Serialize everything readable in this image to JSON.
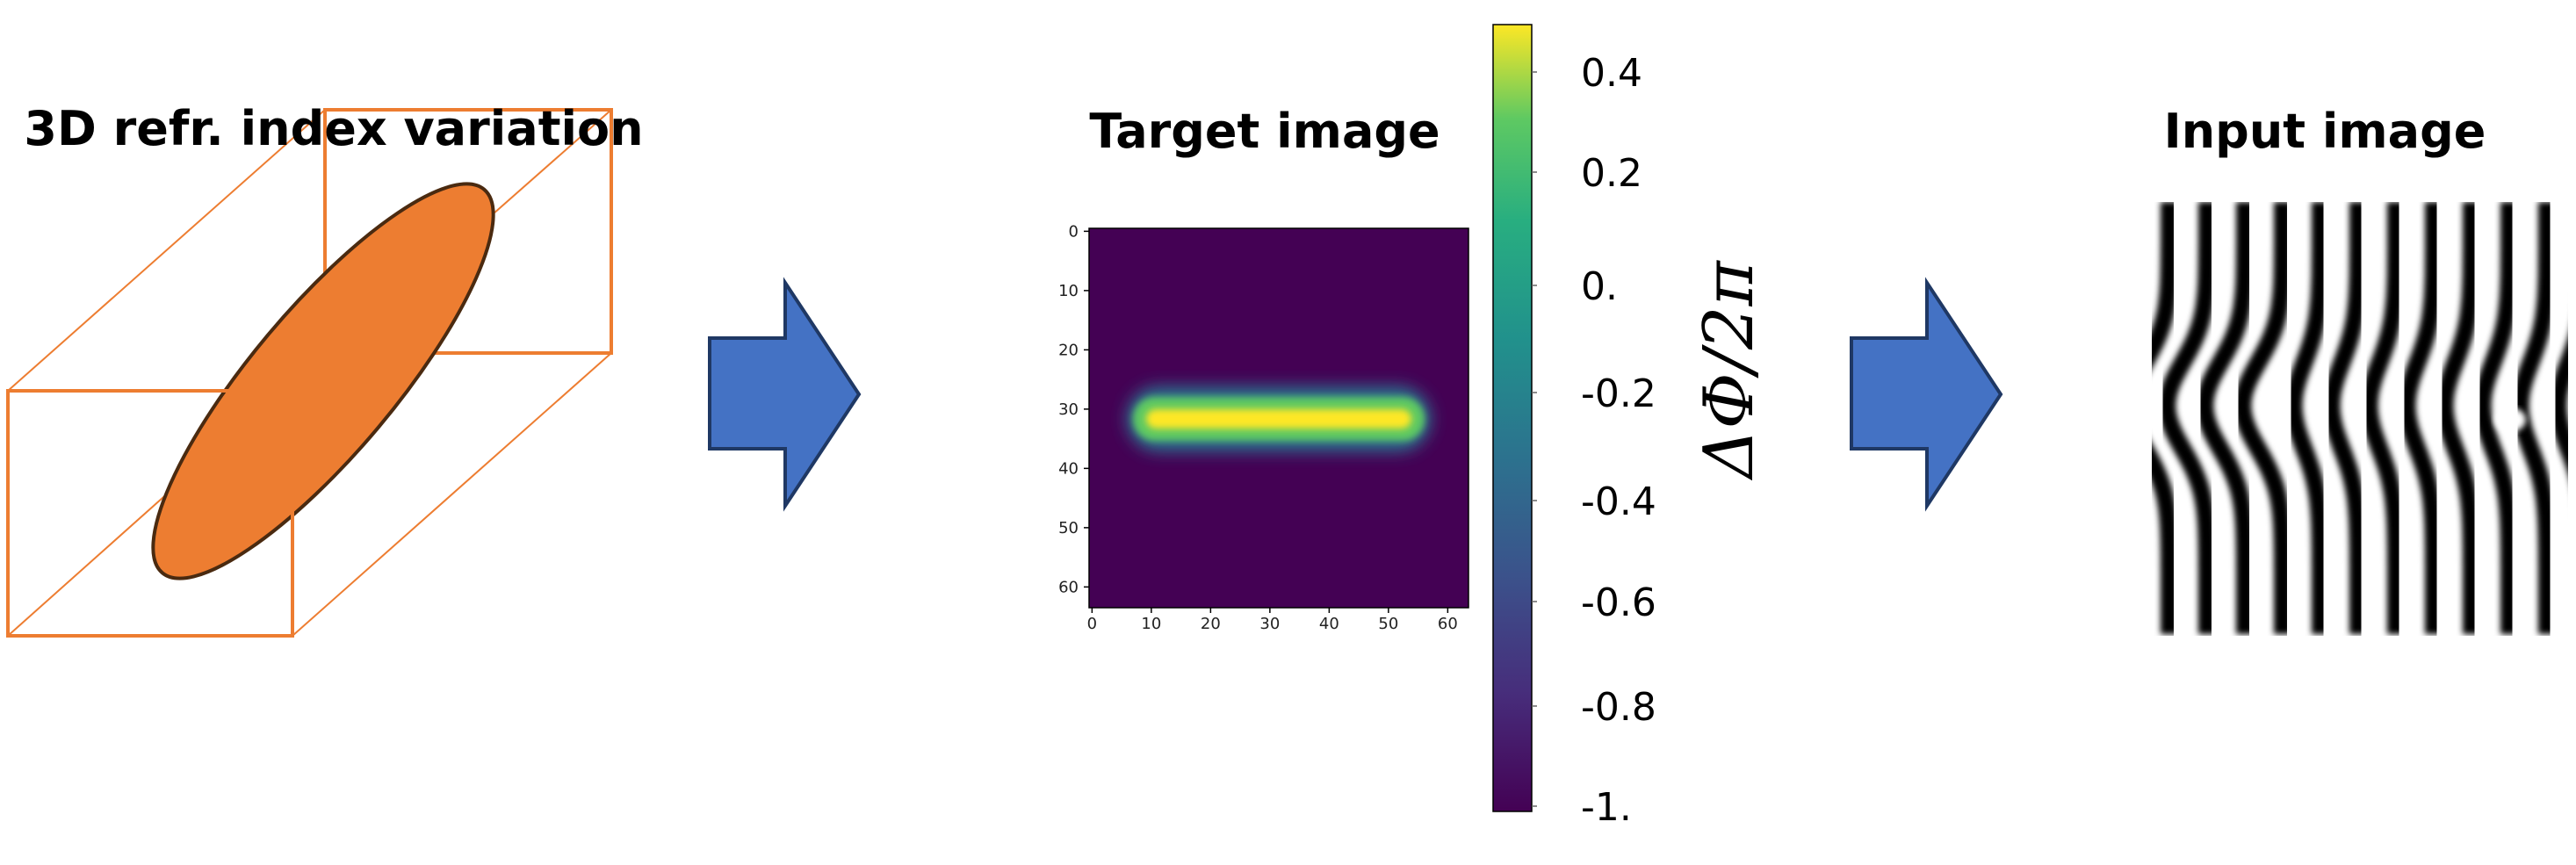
{
  "panels": {
    "left": {
      "title": "3D refr. index variation"
    },
    "middle": {
      "title": "Target image"
    },
    "right": {
      "title": "Input image"
    }
  },
  "target": {
    "xticks": [
      0,
      10,
      20,
      30,
      40,
      50,
      60
    ],
    "yticks": [
      0,
      10,
      20,
      30,
      40,
      50,
      60
    ]
  },
  "colorbar": {
    "labels": [
      "0.4",
      "0.2",
      "0.",
      "-0.2",
      "-0.4",
      "-0.6",
      "-0.8",
      "-1."
    ],
    "axis_label": "ΔΦ/2π"
  }
}
